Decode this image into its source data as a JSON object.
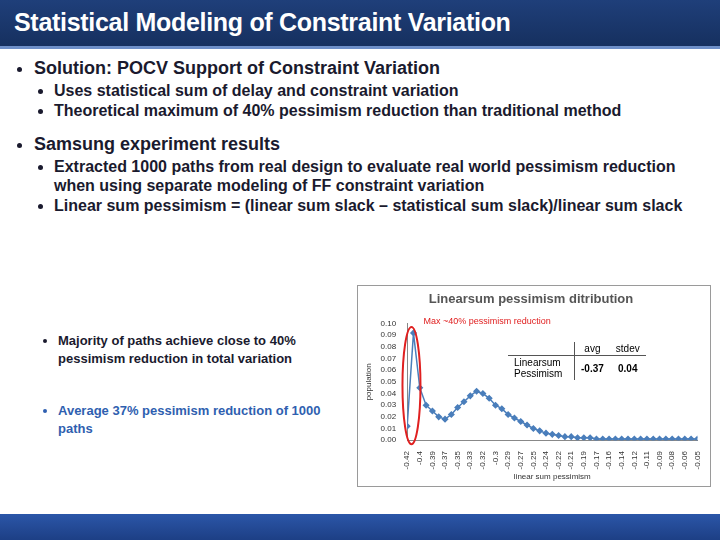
{
  "slide": {
    "title": "Statistical Modeling of Constraint Variation",
    "bullets": [
      {
        "text": "Solution: POCV Support of Constraint Variation",
        "sub": [
          "Uses statistical sum of delay and constraint variation",
          "Theoretical maximum of 40% pessimism reduction than traditional method"
        ]
      },
      {
        "text": "Samsung experiment results",
        "sub": [
          "Extracted 1000 paths from real design to evaluate real world pessimism reduction when using separate modeling of FF constraint variation",
          "Linear sum pessimism = (linear sum slack – statistical sum slack)/linear sum slack"
        ]
      }
    ],
    "notes": [
      "Majority of paths achieve close to 40% pessimism reduction in total variation",
      "Average 37% pessimism reduction of 1000 paths"
    ]
  },
  "chart_data": {
    "type": "line",
    "title": "Linearsum pessimism ditribution",
    "x_label": "linear sum pessimism",
    "y_label": "population",
    "annotation": "Max ~40% pessimism reduction",
    "categories": [
      "-0.42",
      null,
      "-0.4",
      null,
      "-0.39",
      null,
      "-0.37",
      null,
      "-0.35",
      null,
      "-0.33",
      null,
      "-0.32",
      null,
      "-0.3",
      null,
      "-0.29",
      null,
      "-0.27",
      null,
      "-0.25",
      null,
      "-0.24",
      null,
      "-0.22",
      null,
      "-0.21",
      null,
      "-0.19",
      null,
      "-0.17",
      null,
      "-0.16",
      null,
      "-0.14",
      null,
      "-0.12",
      null,
      "-0.11",
      null,
      "-0.09",
      null,
      "-0.08",
      null,
      "-0.06",
      null,
      "-0.05"
    ],
    "values": [
      0.012,
      0.092,
      0.045,
      0.03,
      0.025,
      0.02,
      0.018,
      0.022,
      0.028,
      0.033,
      0.038,
      0.042,
      0.04,
      0.036,
      0.03,
      0.027,
      0.022,
      0.019,
      0.016,
      0.013,
      0.01,
      0.008,
      0.006,
      0.005,
      0.004,
      0.003,
      0.003,
      0.002,
      0.002,
      0.002,
      0.001,
      0.001,
      0.001,
      0.001,
      0.001,
      0.001,
      0.001,
      0.001,
      0.001,
      0.001,
      0.001,
      0.001,
      0.001,
      0.001,
      0.001,
      0.001,
      0.001
    ],
    "color": "#4a7ebb",
    "marker": "diamond",
    "ylim": [
      0,
      0.1
    ],
    "yticks": [
      {
        "value": 0,
        "label": "0.00"
      },
      {
        "value": 0.01,
        "label": "0.01"
      },
      {
        "value": 0.02,
        "label": "0.02"
      },
      {
        "value": 0.03,
        "label": "0.03"
      },
      {
        "value": 0.04,
        "label": "0.04"
      },
      {
        "value": 0.05,
        "label": "0.05"
      },
      {
        "value": 0.06,
        "label": "0.06"
      },
      {
        "value": 0.07,
        "label": "0.07"
      },
      {
        "value": 0.08,
        "label": "0.08"
      },
      {
        "value": 0.09,
        "label": "0.09"
      },
      {
        "value": 0.1,
        "label": "0.10"
      }
    ],
    "grid": false,
    "stats": {
      "row_label": "Linearsum Pessimism",
      "columns": [
        "avg",
        "stdev"
      ],
      "values": [
        -0.37,
        0.04
      ]
    }
  }
}
